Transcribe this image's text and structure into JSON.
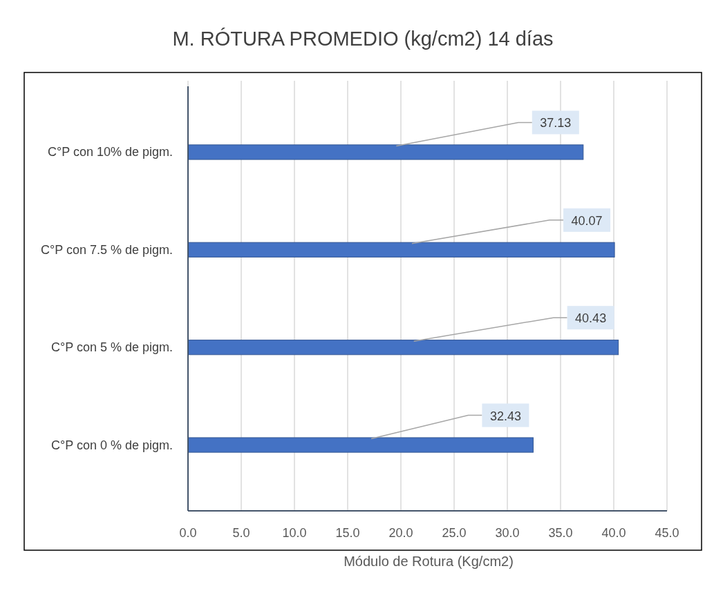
{
  "chart_data": {
    "type": "bar",
    "orientation": "horizontal",
    "title": "M. RÓTURA PROMEDIO (kg/cm2) 14 días",
    "xlabel": "Módulo de Rotura (Kg/cm2)",
    "categories": [
      "C°P con 10% de pigm.",
      "C°P con 7.5 % de pigm.",
      "C°P con 5 % de pigm.",
      "C°P con 0 % de pigm."
    ],
    "values": [
      37.13,
      40.07,
      40.43,
      32.43
    ],
    "color": "#4472c4",
    "data_labels": true,
    "grid": "x",
    "xlim": [
      0,
      45
    ],
    "xticks": [
      {
        "value": 0,
        "label": "0.0"
      },
      {
        "value": 5,
        "label": "5.0"
      },
      {
        "value": 10,
        "label": "10.0"
      },
      {
        "value": 15,
        "label": "15.0"
      },
      {
        "value": 20,
        "label": "20.0"
      },
      {
        "value": 25,
        "label": "25.0"
      },
      {
        "value": 30,
        "label": "30.0"
      },
      {
        "value": 35,
        "label": "35.0"
      },
      {
        "value": 40,
        "label": "40.0"
      },
      {
        "value": 45,
        "label": "45.0"
      }
    ]
  }
}
